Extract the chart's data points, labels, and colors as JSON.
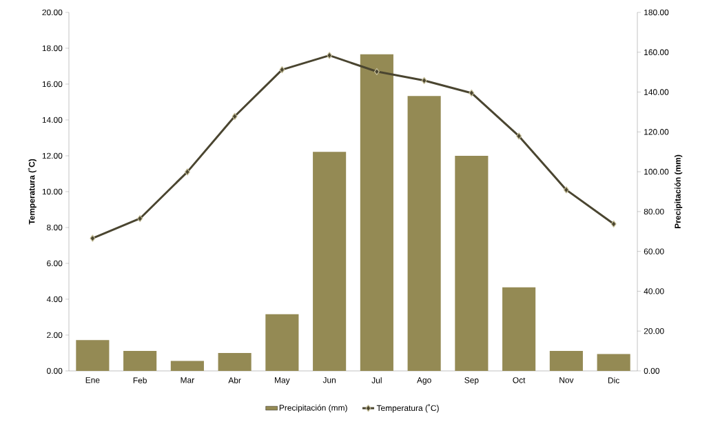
{
  "chart_data": {
    "type": "bar",
    "categories": [
      "Ene",
      "Feb",
      "Mar",
      "Abr",
      "May",
      "Jun",
      "Jul",
      "Ago",
      "Sep",
      "Oct",
      "Nov",
      "Dic"
    ],
    "series": [
      {
        "name": "Precipitación (mm)",
        "axis": "y2",
        "color": "#948a54",
        "values": [
          15.5,
          10,
          5,
          9,
          28.5,
          110,
          159,
          138,
          108,
          42,
          10,
          8.5
        ]
      },
      {
        "name": "Temperatura (˚C)",
        "type": "line",
        "color": "#4a4530",
        "values": [
          7.4,
          8.5,
          11.1,
          14.2,
          16.8,
          17.6,
          16.7,
          16.2,
          15.5,
          13.1,
          10.1,
          8.2
        ]
      }
    ],
    "ylabel": "Temperatura (˚C)",
    "y2label": "Precipitación (mm)",
    "ylim": [
      0,
      20
    ],
    "yticks": [
      {
        "value": 0,
        "label": "0.00"
      },
      {
        "value": 2,
        "label": "2.00"
      },
      {
        "value": 4,
        "label": "4.00"
      },
      {
        "value": 6,
        "label": "6.00"
      },
      {
        "value": 8,
        "label": "8.00"
      },
      {
        "value": 10,
        "label": "10.00"
      },
      {
        "value": 12,
        "label": "12.00"
      },
      {
        "value": 14,
        "label": "14.00"
      },
      {
        "value": 16,
        "label": "16.00"
      },
      {
        "value": 18,
        "label": "18.00"
      },
      {
        "value": 20,
        "label": "20.00"
      }
    ],
    "y2lim": [
      0,
      180
    ],
    "y2ticks": [
      {
        "value": 0,
        "label": "0.00"
      },
      {
        "value": 20,
        "label": "20.00"
      },
      {
        "value": 40,
        "label": "40.00"
      },
      {
        "value": 60,
        "label": "60.00"
      },
      {
        "value": 80,
        "label": "80.00"
      },
      {
        "value": 100,
        "label": "100.00"
      },
      {
        "value": 120,
        "label": "120.00"
      },
      {
        "value": 140,
        "label": "140.00"
      },
      {
        "value": 160,
        "label": "160.00"
      },
      {
        "value": 180,
        "label": "180.00"
      }
    ],
    "legend": "bottom",
    "marker": "diamond",
    "line_style": "solid",
    "grid": false
  }
}
